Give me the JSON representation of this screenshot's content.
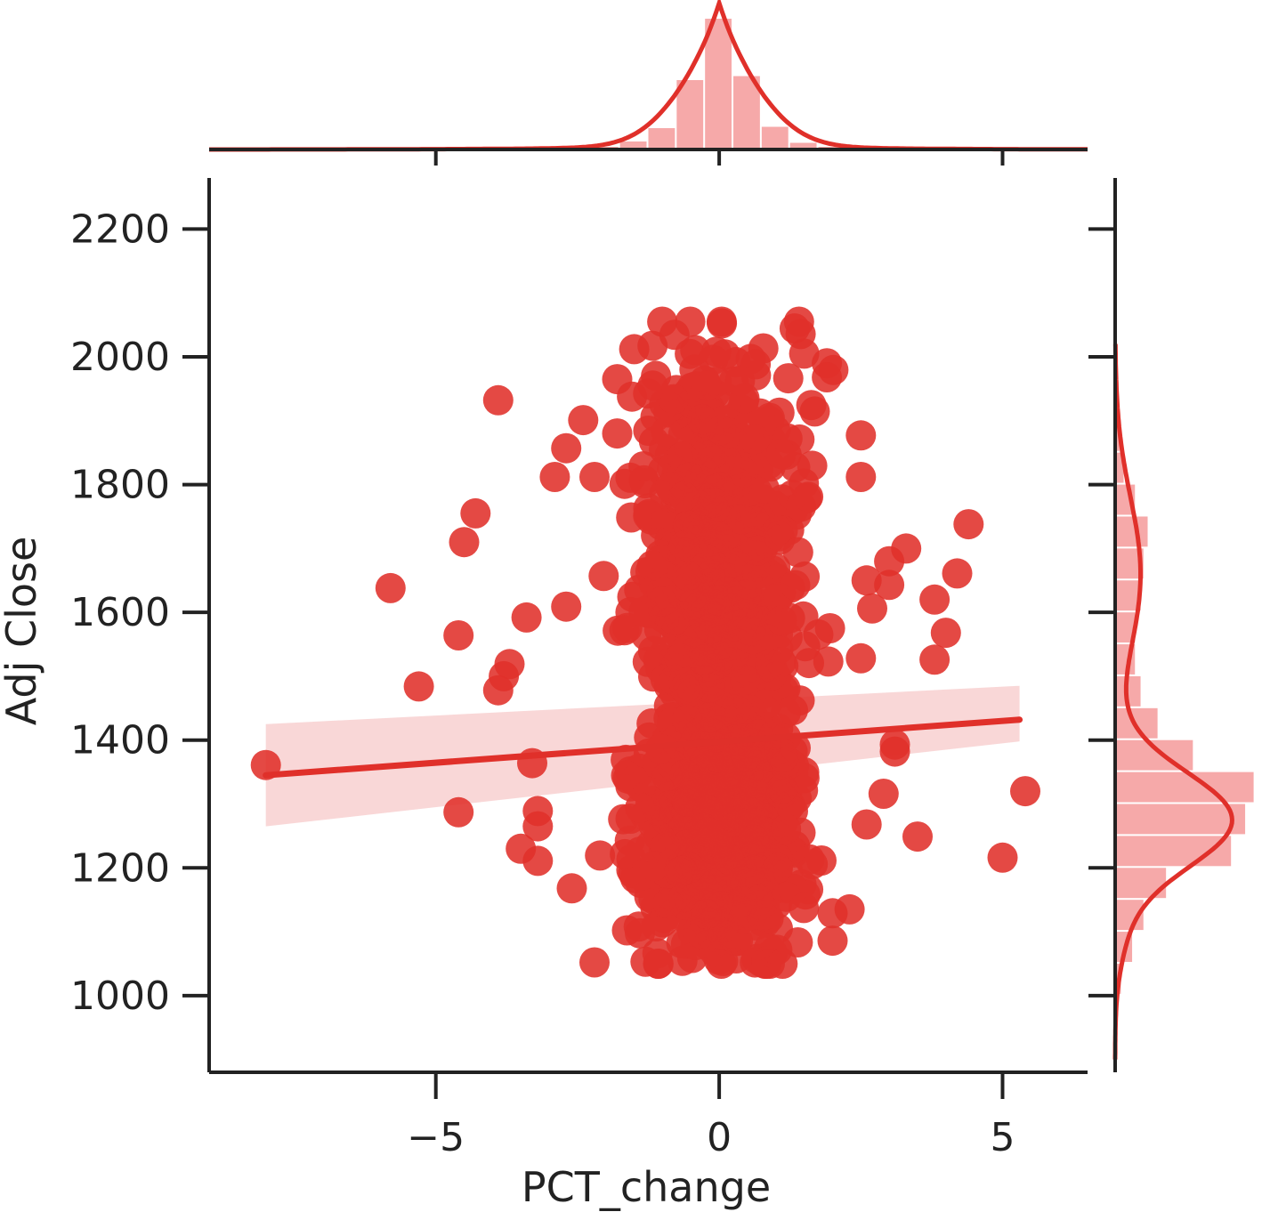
{
  "chart_data": {
    "type": "scatter",
    "title": "",
    "xlabel": "PCT_change",
    "ylabel": "Adj Close",
    "xlim": [
      -9,
      6.5
    ],
    "ylim": [
      880,
      2280
    ],
    "xticks": [
      -5,
      0,
      5
    ],
    "xtick_labels": [
      "−5",
      "0",
      "5"
    ],
    "yticks": [
      1000,
      1200,
      1400,
      1600,
      1800,
      2000,
      2200
    ],
    "ytick_labels": [
      "1000",
      "1200",
      "1400",
      "1600",
      "1800",
      "2000",
      "2200"
    ],
    "grid": false,
    "legend": "none",
    "color": "#e0302a",
    "regression": {
      "x": [
        -8.0,
        5.3
      ],
      "y": [
        1345,
        1432
      ],
      "ci_lower": [
        1265,
        1398
      ],
      "ci_upper": [
        1425,
        1485
      ]
    },
    "outliers": [
      {
        "x": -8.0,
        "y": 1361
      },
      {
        "x": -5.8,
        "y": 1638
      },
      {
        "x": -5.3,
        "y": 1484
      },
      {
        "x": -4.6,
        "y": 1564
      },
      {
        "x": -4.6,
        "y": 1287
      },
      {
        "x": -4.5,
        "y": 1710
      },
      {
        "x": -4.3,
        "y": 1755
      },
      {
        "x": -3.9,
        "y": 1932
      },
      {
        "x": -3.8,
        "y": 1500
      },
      {
        "x": -3.7,
        "y": 1519
      },
      {
        "x": -3.9,
        "y": 1478
      },
      {
        "x": -3.4,
        "y": 1592
      },
      {
        "x": -3.3,
        "y": 1364
      },
      {
        "x": -3.2,
        "y": 1289
      },
      {
        "x": -3.2,
        "y": 1265
      },
      {
        "x": -3.2,
        "y": 1211
      },
      {
        "x": -3.5,
        "y": 1230
      },
      {
        "x": -2.9,
        "y": 1812
      },
      {
        "x": -2.7,
        "y": 1857
      },
      {
        "x": -2.4,
        "y": 1901
      },
      {
        "x": -2.2,
        "y": 1812
      },
      {
        "x": -2.7,
        "y": 1609
      },
      {
        "x": -1.8,
        "y": 1965
      },
      {
        "x": -1.5,
        "y": 2012
      },
      {
        "x": -1.8,
        "y": 1880
      },
      {
        "x": -2.6,
        "y": 1168
      },
      {
        "x": -2.2,
        "y": 1052
      },
      {
        "x": -1.3,
        "y": 1053
      },
      {
        "x": 1.5,
        "y": 2005
      },
      {
        "x": 1.9,
        "y": 1990
      },
      {
        "x": 1.9,
        "y": 1968
      },
      {
        "x": 2.5,
        "y": 1877
      },
      {
        "x": 2.5,
        "y": 1812
      },
      {
        "x": 2.6,
        "y": 1650
      },
      {
        "x": 2.7,
        "y": 1606
      },
      {
        "x": 3.0,
        "y": 1680
      },
      {
        "x": 3.3,
        "y": 1700
      },
      {
        "x": 3.0,
        "y": 1643
      },
      {
        "x": 2.5,
        "y": 1528
      },
      {
        "x": 3.1,
        "y": 1393
      },
      {
        "x": 3.1,
        "y": 1382
      },
      {
        "x": 2.9,
        "y": 1316
      },
      {
        "x": 2.6,
        "y": 1268
      },
      {
        "x": 3.5,
        "y": 1249
      },
      {
        "x": 3.8,
        "y": 1620
      },
      {
        "x": 3.8,
        "y": 1526
      },
      {
        "x": 4.0,
        "y": 1568
      },
      {
        "x": 4.2,
        "y": 1661
      },
      {
        "x": 4.4,
        "y": 1738
      },
      {
        "x": 5.0,
        "y": 1216
      },
      {
        "x": 5.4,
        "y": 1320
      },
      {
        "x": 2.0,
        "y": 1086
      },
      {
        "x": 2.3,
        "y": 1135
      }
    ],
    "core_cluster": {
      "x_mean": 0.0,
      "x_sd": 0.7,
      "y_min": 1050,
      "y_max": 2055,
      "y_mode_low": 1270,
      "y_mode_high": 1660
    },
    "x_marginal": {
      "type": "hist+kde",
      "bins": [
        -2.0,
        -1.5,
        -1.0,
        -0.5,
        0.0,
        0.5,
        1.0,
        1.5,
        2.0
      ],
      "density": [
        0.02,
        0.06,
        0.16,
        0.52,
        0.98,
        0.55,
        0.17,
        0.05,
        0.02
      ]
    },
    "y_marginal": {
      "type": "hist+kde",
      "bins": [
        1000,
        1050,
        1100,
        1150,
        1200,
        1250,
        1300,
        1350,
        1400,
        1450,
        1500,
        1550,
        1600,
        1650,
        1700,
        1750,
        1800,
        1850
      ],
      "density": [
        0.04,
        0.12,
        0.2,
        0.36,
        0.82,
        0.92,
        0.98,
        0.55,
        0.3,
        0.18,
        0.14,
        0.14,
        0.18,
        0.2,
        0.23,
        0.14,
        0.06,
        0.03
      ]
    }
  }
}
